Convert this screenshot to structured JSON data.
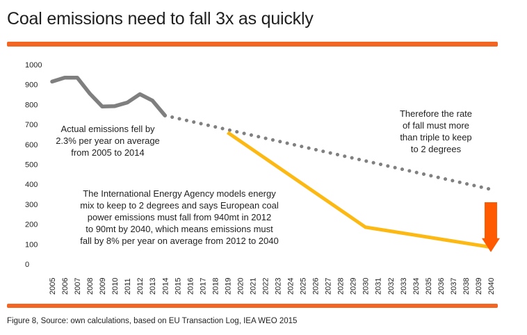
{
  "title": "Coal emissions need to fall 3x as quickly",
  "caption": "Figure 8, Source: own calculations, based on EU Transaction Log, IEA WEO 2015",
  "colors": {
    "rule": "#f26522",
    "actual": "#7f7f7f",
    "dotted": "#808080",
    "iea": "#fdb913",
    "arrow": "#ff5a00"
  },
  "chart_data": {
    "type": "line",
    "ylim": [
      0,
      1000
    ],
    "yticks": [
      0,
      100,
      200,
      300,
      400,
      500,
      600,
      700,
      800,
      900,
      1000
    ],
    "xlim": [
      2005,
      2040
    ],
    "xticks": [
      2005,
      2006,
      2007,
      2008,
      2009,
      2010,
      2011,
      2012,
      2013,
      2014,
      2015,
      2016,
      2017,
      2018,
      2019,
      2020,
      2021,
      2022,
      2023,
      2024,
      2025,
      2026,
      2027,
      2028,
      2029,
      2030,
      2031,
      2032,
      2033,
      2034,
      2035,
      2036,
      2037,
      2038,
      2039,
      2040
    ],
    "grid": false,
    "series": [
      {
        "style": "solid-grey",
        "x": [
          2005,
          2006,
          2007,
          2008,
          2009,
          2010,
          2011,
          2012,
          2013,
          2014
        ],
        "y": [
          915,
          935,
          935,
          855,
          790,
          792,
          810,
          852,
          820,
          745
        ]
      },
      {
        "style": "dotted-grey",
        "x": [
          2014,
          2040
        ],
        "y": [
          745,
          375
        ]
      },
      {
        "style": "solid-yellow",
        "x": [
          2019,
          2030,
          2040
        ],
        "y": [
          660,
          185,
          85
        ]
      }
    ],
    "arrow": {
      "x": 2040,
      "from": 310,
      "to": 60
    },
    "annotations": [
      {
        "id": "actual",
        "lines": [
          "Actual emissions fell by",
          "2.3% per year on average",
          "from 2005 to 2014"
        ]
      },
      {
        "id": "rate",
        "lines": [
          "Therefore the rate",
          "of fall must more",
          "than triple to keep",
          "to 2 degrees"
        ]
      },
      {
        "id": "iea",
        "lines": [
          "The International Energy Agency models energy",
          "mix to keep to 2 degrees and says European coal",
          "power emissions must fall from 940mt in 2012",
          "to 90mt by 2040, which means emissions must",
          "fall by 8% per year on average from 2012 to 2040"
        ]
      }
    ]
  }
}
